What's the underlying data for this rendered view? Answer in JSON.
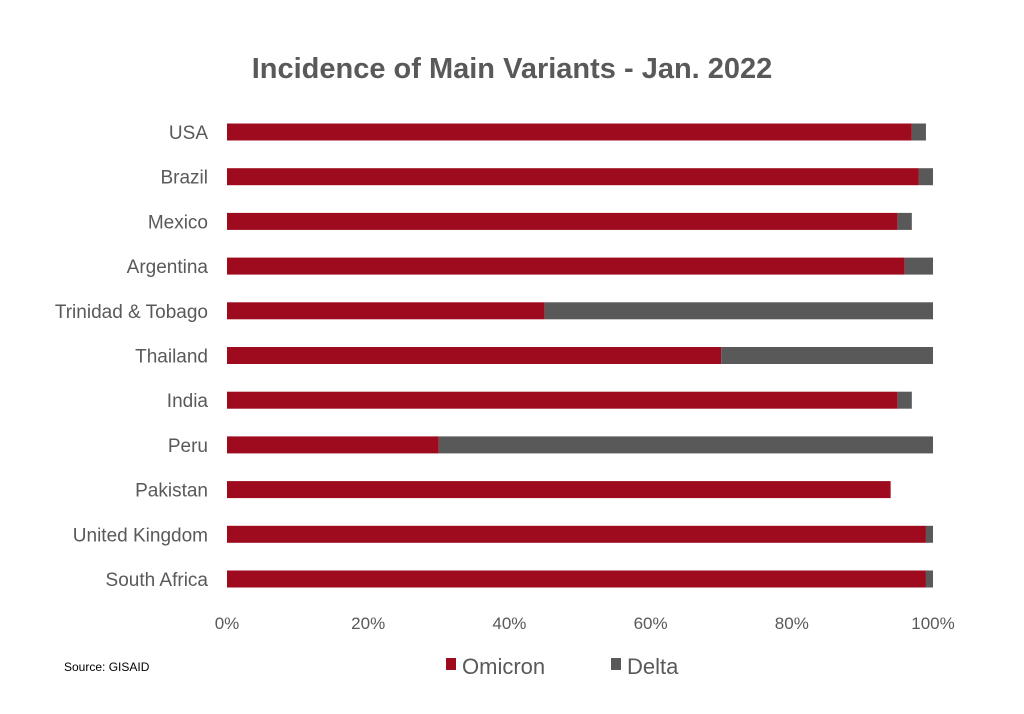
{
  "chart_data": {
    "type": "bar",
    "orientation": "horizontal",
    "stacked": true,
    "title": "Incidence of Main Variants - Jan. 2022",
    "xlabel": "",
    "ylabel": "",
    "xlim": [
      0,
      100
    ],
    "x_ticks": [
      "0%",
      "20%",
      "40%",
      "60%",
      "80%",
      "100%"
    ],
    "grid": false,
    "legend_position": "bottom",
    "categories": [
      "USA",
      "Brazil",
      "Mexico",
      "Argentina",
      "Trinidad & Tobago",
      "Thailand",
      "India",
      "Peru",
      "Pakistan",
      "United Kingdom",
      "South Africa"
    ],
    "series": [
      {
        "name": "Omicron",
        "color": "#9e0b1f",
        "values": [
          97,
          98,
          95,
          96,
          45,
          70,
          95,
          30,
          94,
          99,
          99
        ]
      },
      {
        "name": "Delta",
        "color": "#595959",
        "values": [
          2,
          2,
          2,
          4,
          55,
          30,
          2,
          70,
          0,
          1,
          1
        ]
      }
    ],
    "source": "Source: GISAID"
  }
}
